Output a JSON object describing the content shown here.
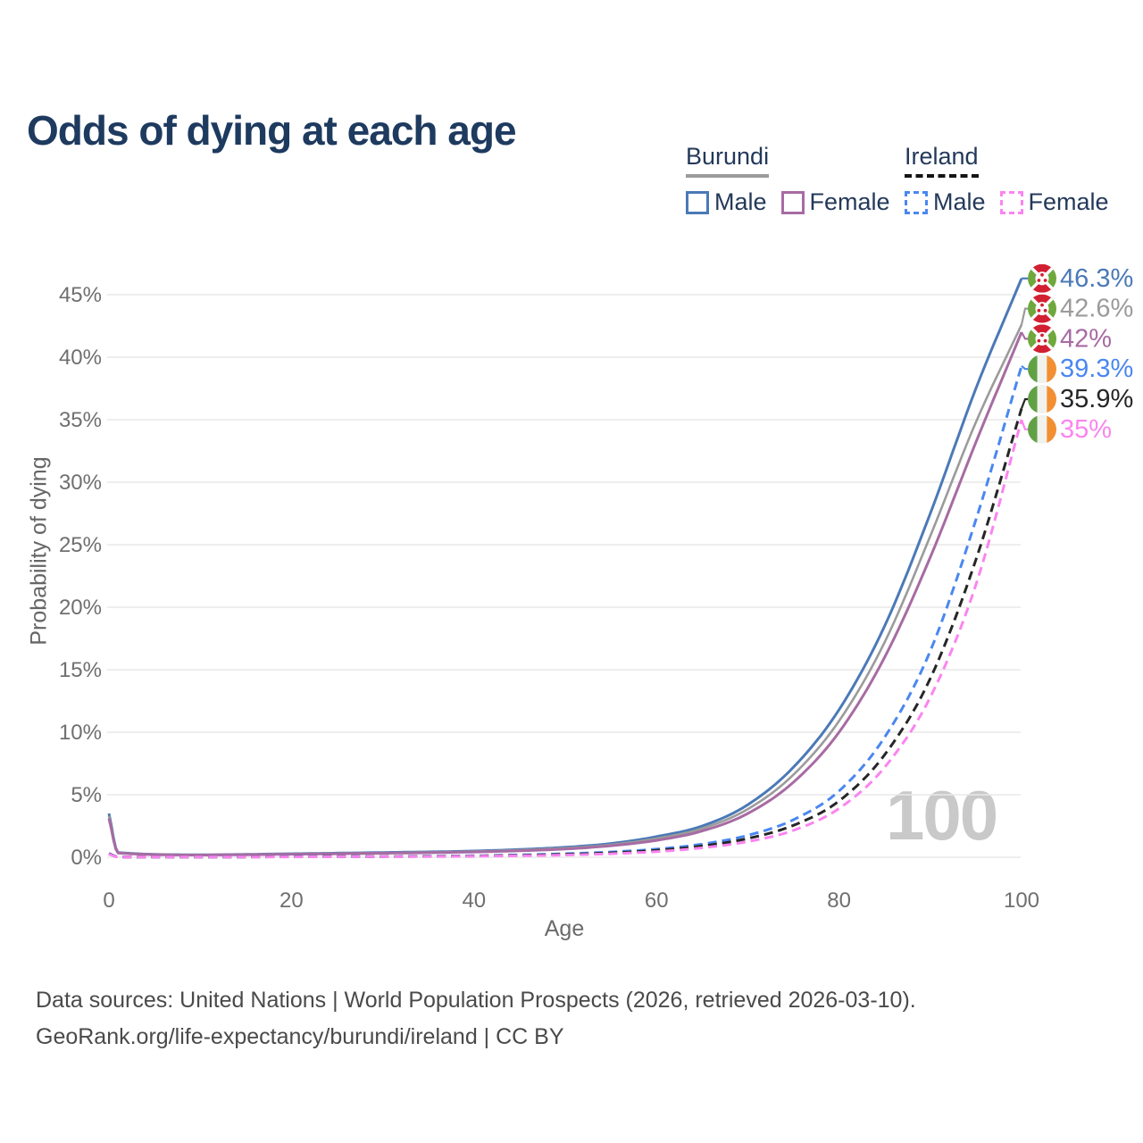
{
  "title": "Odds of dying at each age",
  "legend": {
    "groups": [
      {
        "name": "Burundi",
        "line_style": "solid",
        "line_color": "#9b9b9b",
        "items": [
          {
            "label": "Male",
            "color": "#4b79b7",
            "dashed": false
          },
          {
            "label": "Female",
            "color": "#a76ba3",
            "dashed": false
          }
        ]
      },
      {
        "name": "Ireland",
        "line_style": "dashed",
        "line_color": "#141414",
        "items": [
          {
            "label": "Male",
            "color": "#4a87f0",
            "dashed": true
          },
          {
            "label": "Female",
            "color": "#fb84f0",
            "dashed": true
          }
        ]
      }
    ]
  },
  "chart_data": {
    "type": "line",
    "title": "Odds of dying at each age",
    "xlabel": "Age",
    "ylabel": "Probability of dying",
    "xlim": [
      0,
      100
    ],
    "ylim": [
      0,
      47
    ],
    "x_ticks": [
      0,
      20,
      40,
      60,
      80,
      100
    ],
    "y_tick_labels": [
      "0%",
      "5%",
      "10%",
      "15%",
      "20%",
      "25%",
      "30%",
      "35%",
      "40%",
      "45%"
    ],
    "y_tick_values": [
      0,
      5,
      10,
      15,
      20,
      25,
      30,
      35,
      40,
      45
    ],
    "grid": true,
    "legend_position": "top-right",
    "watermark": "100",
    "x": [
      0,
      1,
      10,
      20,
      30,
      40,
      50,
      55,
      60,
      65,
      70,
      75,
      80,
      85,
      90,
      95,
      100
    ],
    "series": [
      {
        "name": "Burundi Male",
        "color": "#4b79b7",
        "dashed": false,
        "flag": "burundi",
        "end_label": "46.3%",
        "values": [
          3.5,
          0.38,
          0.2,
          0.28,
          0.38,
          0.5,
          0.8,
          1.1,
          1.65,
          2.5,
          4.2,
          7.2,
          11.8,
          18.5,
          27.5,
          37.5,
          46.3
        ]
      },
      {
        "name": "Burundi",
        "color": "#9b9b9b",
        "dashed": false,
        "flag": "burundi",
        "end_label": "42.6%",
        "values": [
          3.3,
          0.36,
          0.19,
          0.26,
          0.35,
          0.46,
          0.73,
          1.0,
          1.5,
          2.3,
          3.85,
          6.6,
          10.9,
          17.2,
          25.7,
          34.8,
          42.6
        ]
      },
      {
        "name": "Burundi Female",
        "color": "#a76ba3",
        "dashed": false,
        "flag": "burundi",
        "end_label": "42%",
        "values": [
          3.1,
          0.34,
          0.18,
          0.24,
          0.32,
          0.42,
          0.66,
          0.92,
          1.35,
          2.1,
          3.5,
          6.0,
          10.0,
          16.0,
          24.0,
          33.2,
          42.0
        ]
      },
      {
        "name": "Ireland Male",
        "color": "#4a87f0",
        "dashed": true,
        "flag": "ireland",
        "end_label": "39.3%",
        "values": [
          0.3,
          0.03,
          0.012,
          0.05,
          0.07,
          0.12,
          0.28,
          0.42,
          0.65,
          1.05,
          1.75,
          3.0,
          5.3,
          9.6,
          16.5,
          27.0,
          39.3
        ]
      },
      {
        "name": "Ireland",
        "color": "#262626",
        "dashed": true,
        "flag": "ireland",
        "end_label": "35.9%",
        "values": [
          0.28,
          0.025,
          0.012,
          0.04,
          0.06,
          0.1,
          0.23,
          0.35,
          0.55,
          0.9,
          1.5,
          2.55,
          4.5,
          8.2,
          14.3,
          23.8,
          35.9
        ]
      },
      {
        "name": "Ireland Female",
        "color": "#fb84f0",
        "dashed": true,
        "flag": "ireland",
        "end_label": "35%",
        "values": [
          0.25,
          0.02,
          0.012,
          0.03,
          0.05,
          0.08,
          0.18,
          0.28,
          0.45,
          0.75,
          1.25,
          2.15,
          3.9,
          7.2,
          12.8,
          21.8,
          35.0
        ]
      }
    ],
    "flag_colors": {
      "burundi": {
        "red": "#d22032",
        "green": "#6fa83d",
        "white": "#ffffff"
      },
      "ireland": {
        "green": "#61a146",
        "white": "#f1f1ed",
        "orange": "#f28f33"
      }
    }
  },
  "footer": {
    "line1": "Data sources: United Nations | World Population Prospects (2026, retrieved 2026-03-10).",
    "line2": "GeoRank.org/life-expectancy/burundi/ireland | CC BY"
  }
}
